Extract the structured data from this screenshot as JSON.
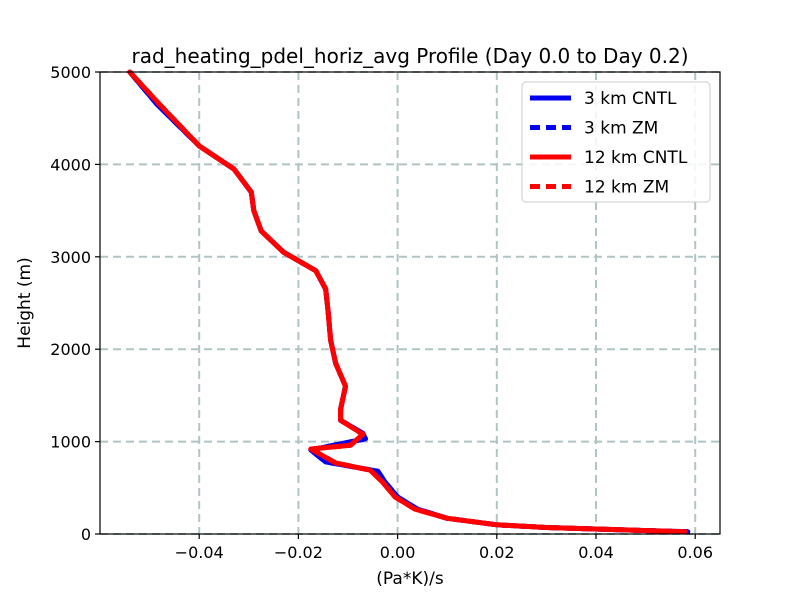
{
  "chart_data": {
    "type": "line",
    "title": "rad_heating_pdel_horiz_avg Profile (Day 0.0 to Day 0.2)",
    "xlabel": "(Pa*K)/s",
    "ylabel": "Height (m)",
    "xlim": [
      -0.06,
      0.065
    ],
    "ylim": [
      0,
      5000
    ],
    "x_ticks": [
      -0.04,
      -0.02,
      0.0,
      0.02,
      0.04,
      0.06
    ],
    "x_tick_labels": [
      "−0.04",
      "−0.02",
      "0.00",
      "0.02",
      "0.04",
      "0.06"
    ],
    "y_ticks": [
      0,
      1000,
      2000,
      3000,
      4000,
      5000
    ],
    "y_tick_labels": [
      "0",
      "1000",
      "2000",
      "3000",
      "4000",
      "5000"
    ],
    "grid": true,
    "legend_position": "top-right",
    "series": [
      {
        "name": "3 km CNTL",
        "color": "#0000ee",
        "style": "solid",
        "points": [
          [
            0.0585,
            25
          ],
          [
            0.045,
            45
          ],
          [
            0.03,
            70
          ],
          [
            0.02,
            100
          ],
          [
            0.01,
            170
          ],
          [
            0.004,
            270
          ],
          [
            0.0,
            400
          ],
          [
            -0.0025,
            560
          ],
          [
            -0.004,
            680
          ],
          [
            -0.0145,
            780
          ],
          [
            -0.0175,
            910
          ],
          [
            -0.0065,
            1030
          ],
          [
            -0.007,
            1090
          ],
          [
            -0.0115,
            1230
          ],
          [
            -0.0115,
            1350
          ],
          [
            -0.0105,
            1600
          ],
          [
            -0.0125,
            1850
          ],
          [
            -0.0135,
            2100
          ],
          [
            -0.014,
            2400
          ],
          [
            -0.0145,
            2650
          ],
          [
            -0.0165,
            2850
          ],
          [
            -0.023,
            3050
          ],
          [
            -0.0275,
            3280
          ],
          [
            -0.029,
            3500
          ],
          [
            -0.0295,
            3700
          ],
          [
            -0.033,
            3950
          ],
          [
            -0.04,
            4200
          ],
          [
            -0.0485,
            4650
          ],
          [
            -0.054,
            5000
          ]
        ]
      },
      {
        "name": "3 km ZM",
        "color": "#0000ee",
        "style": "dashed",
        "points": [
          [
            0.0585,
            25
          ],
          [
            0.045,
            45
          ],
          [
            0.03,
            70
          ],
          [
            0.02,
            100
          ],
          [
            0.01,
            170
          ],
          [
            0.004,
            270
          ],
          [
            0.0,
            400
          ],
          [
            -0.0025,
            560
          ],
          [
            -0.004,
            680
          ],
          [
            -0.0145,
            780
          ],
          [
            -0.0175,
            910
          ],
          [
            -0.0065,
            1030
          ],
          [
            -0.007,
            1090
          ],
          [
            -0.0115,
            1230
          ],
          [
            -0.0115,
            1350
          ],
          [
            -0.0105,
            1600
          ],
          [
            -0.0125,
            1850
          ],
          [
            -0.0135,
            2100
          ],
          [
            -0.014,
            2400
          ],
          [
            -0.0145,
            2650
          ],
          [
            -0.0165,
            2850
          ],
          [
            -0.023,
            3050
          ],
          [
            -0.0275,
            3280
          ],
          [
            -0.029,
            3500
          ],
          [
            -0.0295,
            3700
          ],
          [
            -0.033,
            3950
          ],
          [
            -0.04,
            4200
          ],
          [
            -0.0485,
            4650
          ],
          [
            -0.054,
            5000
          ]
        ]
      },
      {
        "name": "12 km CNTL",
        "color": "#ff0000",
        "style": "solid",
        "points": [
          [
            0.058,
            25
          ],
          [
            0.045,
            45
          ],
          [
            0.03,
            70
          ],
          [
            0.02,
            100
          ],
          [
            0.01,
            170
          ],
          [
            0.0035,
            270
          ],
          [
            -0.0005,
            400
          ],
          [
            -0.003,
            560
          ],
          [
            -0.0055,
            690
          ],
          [
            -0.0125,
            770
          ],
          [
            -0.0175,
            920
          ],
          [
            -0.0095,
            960
          ],
          [
            -0.007,
            1080
          ],
          [
            -0.0115,
            1230
          ],
          [
            -0.0115,
            1350
          ],
          [
            -0.0105,
            1600
          ],
          [
            -0.0125,
            1850
          ],
          [
            -0.0135,
            2100
          ],
          [
            -0.014,
            2400
          ],
          [
            -0.0145,
            2650
          ],
          [
            -0.0165,
            2850
          ],
          [
            -0.023,
            3050
          ],
          [
            -0.0275,
            3280
          ],
          [
            -0.029,
            3500
          ],
          [
            -0.0295,
            3700
          ],
          [
            -0.033,
            3950
          ],
          [
            -0.04,
            4200
          ],
          [
            -0.048,
            4650
          ],
          [
            -0.054,
            5000
          ]
        ]
      },
      {
        "name": "12 km ZM",
        "color": "#ff0000",
        "style": "dashed",
        "points": [
          [
            0.058,
            25
          ],
          [
            0.045,
            45
          ],
          [
            0.03,
            70
          ],
          [
            0.02,
            100
          ],
          [
            0.01,
            170
          ],
          [
            0.0035,
            270
          ],
          [
            -0.0005,
            400
          ],
          [
            -0.003,
            560
          ],
          [
            -0.0055,
            690
          ],
          [
            -0.0125,
            770
          ],
          [
            -0.0175,
            920
          ],
          [
            -0.0095,
            960
          ],
          [
            -0.007,
            1080
          ],
          [
            -0.0115,
            1230
          ],
          [
            -0.0115,
            1350
          ],
          [
            -0.0105,
            1600
          ],
          [
            -0.0125,
            1850
          ],
          [
            -0.0135,
            2100
          ],
          [
            -0.014,
            2400
          ],
          [
            -0.0145,
            2650
          ],
          [
            -0.0165,
            2850
          ],
          [
            -0.023,
            3050
          ],
          [
            -0.0275,
            3280
          ],
          [
            -0.029,
            3500
          ],
          [
            -0.0295,
            3700
          ],
          [
            -0.033,
            3950
          ],
          [
            -0.04,
            4200
          ],
          [
            -0.048,
            4650
          ],
          [
            -0.054,
            5000
          ]
        ]
      }
    ]
  }
}
